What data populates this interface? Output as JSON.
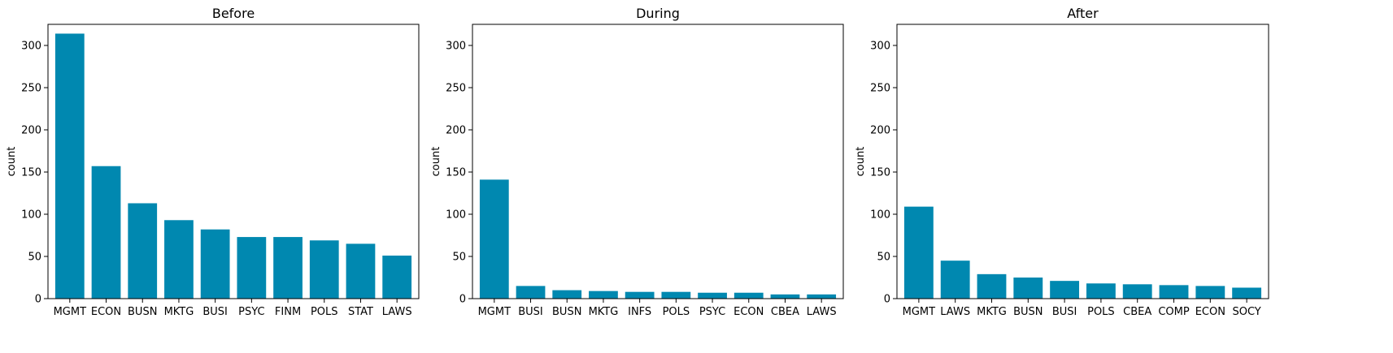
{
  "chart_data": [
    {
      "type": "bar",
      "title": "Before",
      "xlabel": "",
      "ylabel": "count",
      "ylim": [
        0,
        325
      ],
      "yticks": [
        0,
        50,
        100,
        150,
        200,
        250,
        300
      ],
      "color": "#0088B0",
      "categories": [
        "MGMT",
        "ECON",
        "BUSN",
        "MKTG",
        "BUSI",
        "PSYC",
        "FINM",
        "POLS",
        "STAT",
        "LAWS"
      ],
      "values": [
        314,
        157,
        113,
        93,
        82,
        73,
        73,
        69,
        65,
        51
      ]
    },
    {
      "type": "bar",
      "title": "During",
      "xlabel": "",
      "ylabel": "count",
      "ylim": [
        0,
        325
      ],
      "yticks": [
        0,
        50,
        100,
        150,
        200,
        250,
        300
      ],
      "color": "#0088B0",
      "categories": [
        "MGMT",
        "BUSI",
        "BUSN",
        "MKTG",
        "INFS",
        "POLS",
        "PSYC",
        "ECON",
        "CBEA",
        "LAWS"
      ],
      "values": [
        141,
        15,
        10,
        9,
        8,
        8,
        7,
        7,
        5,
        5
      ]
    },
    {
      "type": "bar",
      "title": "After",
      "xlabel": "",
      "ylabel": "count",
      "ylim": [
        0,
        325
      ],
      "yticks": [
        0,
        50,
        100,
        150,
        200,
        250,
        300
      ],
      "color": "#0088B0",
      "categories": [
        "MGMT",
        "LAWS",
        "MKTG",
        "BUSN",
        "BUSI",
        "POLS",
        "CBEA",
        "COMP",
        "ECON",
        "SOCY"
      ],
      "values": [
        109,
        45,
        29,
        25,
        21,
        18,
        17,
        16,
        15,
        13
      ]
    }
  ]
}
